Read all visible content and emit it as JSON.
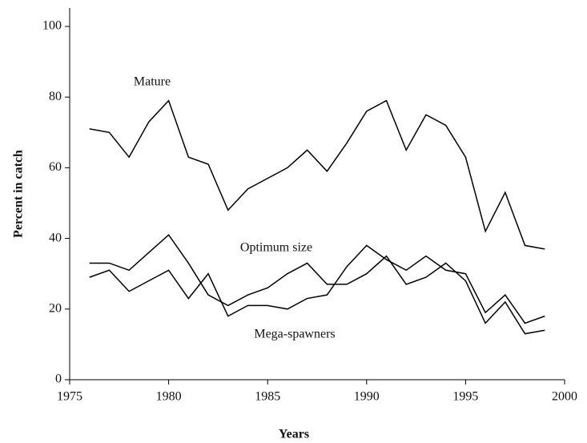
{
  "chart_data": {
    "type": "line",
    "x": [
      1976,
      1977,
      1978,
      1979,
      1980,
      1981,
      1982,
      1983,
      1984,
      1985,
      1986,
      1987,
      1988,
      1989,
      1990,
      1991,
      1992,
      1993,
      1994,
      1995,
      1996,
      1997,
      1998,
      1999
    ],
    "series": [
      {
        "name": "Mature",
        "color": "#000000",
        "values": [
          71,
          70,
          63,
          73,
          79,
          63,
          61,
          48,
          54,
          57,
          60,
          65,
          59,
          67,
          76,
          79,
          65,
          75,
          72,
          63,
          42,
          53,
          38,
          37
        ]
      },
      {
        "name": "Optimum size",
        "color": "#000000",
        "values": [
          33,
          33,
          31,
          36,
          41,
          33,
          24,
          21,
          24,
          26,
          30,
          33,
          27,
          27,
          30,
          35,
          27,
          29,
          33,
          28,
          16,
          22,
          13,
          14
        ]
      },
      {
        "name": "Mega-spawners",
        "color": "#000000",
        "values": [
          29,
          31,
          25,
          28,
          31,
          23,
          30,
          18,
          21,
          21,
          20,
          23,
          24,
          32,
          38,
          34,
          31,
          35,
          31,
          30,
          19,
          24,
          16,
          18
        ]
      }
    ],
    "xlabel": "Years",
    "ylabel": "Percent in catch",
    "xlim": [
      1975,
      2000
    ],
    "xticks": [
      1975,
      1980,
      1985,
      1990,
      1995,
      2000
    ],
    "ylim": [
      0,
      100
    ],
    "yticks": [
      0,
      20,
      40,
      60,
      80,
      100
    ],
    "grid": false
  }
}
